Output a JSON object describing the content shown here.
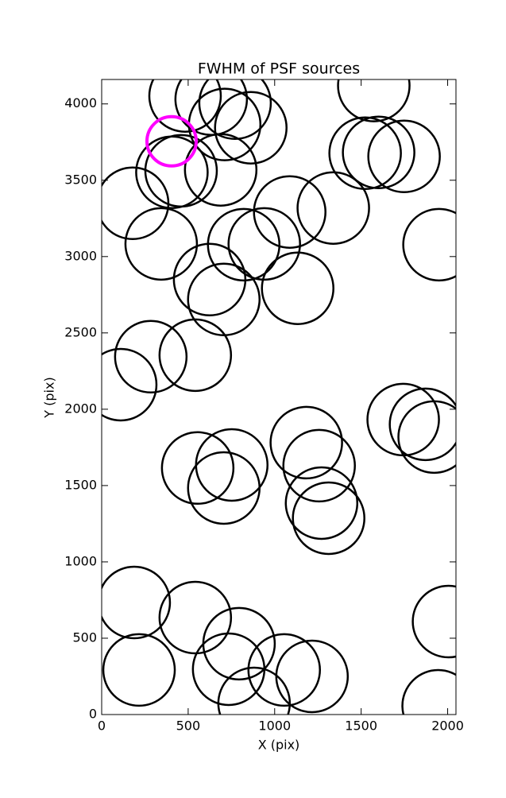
{
  "chart_data": {
    "type": "scatter",
    "title": "FWHM of PSF sources",
    "x_label": "X (pix)",
    "y_label": "Y (pix)",
    "xlim": [
      0,
      2048
    ],
    "ylim": [
      0,
      4160
    ],
    "xticks": [
      0,
      500,
      1000,
      1500,
      2000
    ],
    "yticks": [
      0,
      500,
      1000,
      1500,
      2000,
      2500,
      3000,
      3500,
      4000
    ],
    "series": [
      {
        "color": "#000000",
        "x": [
          482,
          633,
          771,
          711,
          862,
          1573,
          1523,
          1601,
          1748,
          459,
          406,
          688,
          179,
          1087,
          1339,
          1950,
          344,
          821,
          940,
          624,
          706,
          1133,
          284,
          541,
          110,
          1743,
          1872,
          1922,
          1183,
          1257,
          555,
          752,
          706,
          1271,
          1312,
          188,
          541,
          2005,
          794,
          216,
          734,
          1055,
          1216,
          881,
          1945
        ],
        "values": [
          4052,
          4031,
          4005,
          3865,
          3844,
          4120,
          3677,
          3682,
          3656,
          3562,
          3552,
          3568,
          3349,
          3292,
          3318,
          3078,
          3083,
          3078,
          3083,
          2849,
          2719,
          2792,
          2344,
          2354,
          2161,
          1932,
          1901,
          1818,
          1781,
          1630,
          1615,
          1635,
          1484,
          1385,
          1286,
          734,
          635,
          609,
          464,
          292,
          297,
          292,
          250,
          73,
          57
        ]
      },
      {
        "color": "#ff00ff",
        "x": [
          404
        ],
        "values": [
          3755
        ]
      }
    ]
  }
}
